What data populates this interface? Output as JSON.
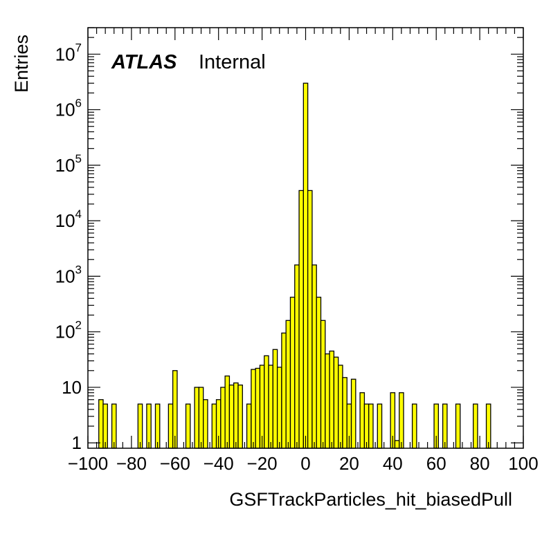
{
  "chart_data": {
    "type": "bar",
    "xlabel": "GSFTrackParticles_hit_biasedPull",
    "ylabel": "Entries",
    "atlas_label": "ATLAS",
    "atlas_status": "Internal",
    "fill_color": "#ffff00",
    "edge_color": "#000000",
    "xlim": [
      -100,
      100
    ],
    "ylim": [
      0.8,
      30000000
    ],
    "yscale": "log",
    "bin_width": 2,
    "x_ticks": [
      {
        "value": -100,
        "label": "−100"
      },
      {
        "value": -80,
        "label": "−80"
      },
      {
        "value": -60,
        "label": "−60"
      },
      {
        "value": -40,
        "label": "−40"
      },
      {
        "value": -20,
        "label": "−20"
      },
      {
        "value": 0,
        "label": "0"
      },
      {
        "value": 20,
        "label": "20"
      },
      {
        "value": 40,
        "label": "40"
      },
      {
        "value": 60,
        "label": "60"
      },
      {
        "value": 80,
        "label": "80"
      },
      {
        "value": 100,
        "label": "100"
      }
    ],
    "y_ticks": [
      {
        "value": 1,
        "base": "1",
        "exp": ""
      },
      {
        "value": 10,
        "base": "10",
        "exp": ""
      },
      {
        "value": 100,
        "base": "10",
        "exp": "2"
      },
      {
        "value": 1000,
        "base": "10",
        "exp": "3"
      },
      {
        "value": 10000,
        "base": "10",
        "exp": "4"
      },
      {
        "value": 100000,
        "base": "10",
        "exp": "5"
      },
      {
        "value": 1000000,
        "base": "10",
        "exp": "6"
      },
      {
        "value": 10000000,
        "base": "10",
        "exp": "7"
      }
    ],
    "bins": [
      {
        "x": -94,
        "y": 6
      },
      {
        "x": -92,
        "y": 5
      },
      {
        "x": -88,
        "y": 5
      },
      {
        "x": -76,
        "y": 5
      },
      {
        "x": -72,
        "y": 5
      },
      {
        "x": -68,
        "y": 5
      },
      {
        "x": -62,
        "y": 5
      },
      {
        "x": -60,
        "y": 20
      },
      {
        "x": -54,
        "y": 5
      },
      {
        "x": -50,
        "y": 10
      },
      {
        "x": -48,
        "y": 10
      },
      {
        "x": -46,
        "y": 6
      },
      {
        "x": -42,
        "y": 5
      },
      {
        "x": -40,
        "y": 6
      },
      {
        "x": -38,
        "y": 10
      },
      {
        "x": -36,
        "y": 16
      },
      {
        "x": -34,
        "y": 11
      },
      {
        "x": -32,
        "y": 12
      },
      {
        "x": -30,
        "y": 11
      },
      {
        "x": -26,
        "y": 5
      },
      {
        "x": -24,
        "y": 21
      },
      {
        "x": -22,
        "y": 22
      },
      {
        "x": -20,
        "y": 25
      },
      {
        "x": -18,
        "y": 37
      },
      {
        "x": -16,
        "y": 25
      },
      {
        "x": -14,
        "y": 48
      },
      {
        "x": -12,
        "y": 23
      },
      {
        "x": -10,
        "y": 95
      },
      {
        "x": -8,
        "y": 160
      },
      {
        "x": -6,
        "y": 420
      },
      {
        "x": -4,
        "y": 1600
      },
      {
        "x": -2,
        "y": 35000
      },
      {
        "x": 0,
        "y": 3000000
      },
      {
        "x": 2,
        "y": 35000
      },
      {
        "x": 4,
        "y": 1600
      },
      {
        "x": 6,
        "y": 420
      },
      {
        "x": 8,
        "y": 160
      },
      {
        "x": 10,
        "y": 40
      },
      {
        "x": 12,
        "y": 45
      },
      {
        "x": 14,
        "y": 35
      },
      {
        "x": 16,
        "y": 25
      },
      {
        "x": 18,
        "y": 15
      },
      {
        "x": 20,
        "y": 5
      },
      {
        "x": 22,
        "y": 14
      },
      {
        "x": 26,
        "y": 8
      },
      {
        "x": 28,
        "y": 5
      },
      {
        "x": 30,
        "y": 5
      },
      {
        "x": 34,
        "y": 5
      },
      {
        "x": 40,
        "y": 8
      },
      {
        "x": 42,
        "y": 1.1
      },
      {
        "x": 44,
        "y": 8
      },
      {
        "x": 50,
        "y": 5
      },
      {
        "x": 60,
        "y": 5
      },
      {
        "x": 64,
        "y": 5
      },
      {
        "x": 70,
        "y": 5
      },
      {
        "x": 78,
        "y": 5
      },
      {
        "x": 84,
        "y": 5
      }
    ]
  }
}
